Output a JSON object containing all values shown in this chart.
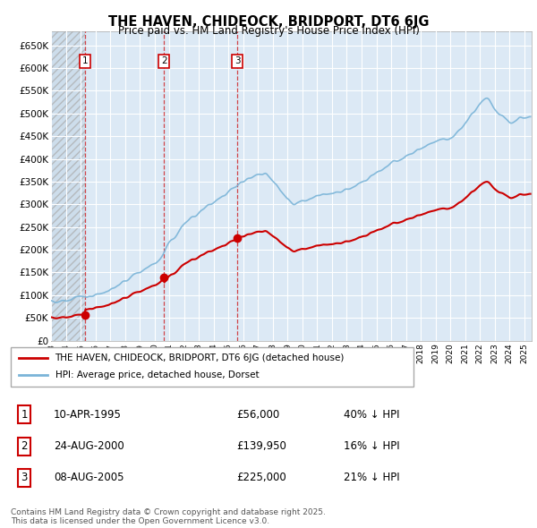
{
  "title": "THE HAVEN, CHIDEOCK, BRIDPORT, DT6 6JG",
  "subtitle": "Price paid vs. HM Land Registry's House Price Index (HPI)",
  "ylim": [
    0,
    680000
  ],
  "legend_line1": "THE HAVEN, CHIDEOCK, BRIDPORT, DT6 6JG (detached house)",
  "legend_line2": "HPI: Average price, detached house, Dorset",
  "transactions": [
    {
      "num": "1",
      "date": "10-APR-1995",
      "price": 56000,
      "hpi_pct": "40% ↓ HPI",
      "year": 1995.28
    },
    {
      "num": "2",
      "date": "24-AUG-2000",
      "price": 139950,
      "hpi_pct": "16% ↓ HPI",
      "year": 2000.65
    },
    {
      "num": "3",
      "date": "08-AUG-2005",
      "price": 225000,
      "hpi_pct": "21% ↓ HPI",
      "year": 2005.6
    }
  ],
  "table_rows": [
    [
      "1",
      "10-APR-1995",
      "£56,000",
      "40% ↓ HPI"
    ],
    [
      "2",
      "24-AUG-2000",
      "£139,950",
      "16% ↓ HPI"
    ],
    [
      "3",
      "08-AUG-2005",
      "£225,000",
      "21% ↓ HPI"
    ]
  ],
  "footnote": "Contains HM Land Registry data © Crown copyright and database right 2025.\nThis data is licensed under the Open Government Licence v3.0.",
  "hpi_color": "#7ab4d8",
  "price_color": "#cc0000",
  "vline_color": "#cc0000",
  "bg_color": "#ffffff",
  "chart_bg": "#dce9f5",
  "grid_color": "#ffffff",
  "hatch_bg": "#c8d8e8"
}
